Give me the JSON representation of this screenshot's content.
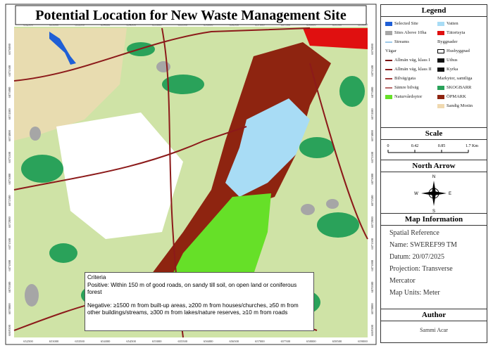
{
  "title": "Potential Location for New Waste Management Site",
  "map": {
    "x_labels": [
      "652500",
      "653000",
      "653500",
      "654000",
      "654500",
      "655000",
      "655500",
      "656000",
      "656500",
      "657000",
      "657500",
      "658000",
      "658500",
      "659000"
    ],
    "y_labels": [
      "6876000",
      "6875500",
      "6875000",
      "6874500",
      "6874000",
      "6873500",
      "6873000",
      "6872500",
      "6872000",
      "6871500",
      "6871000",
      "6870500",
      "6870000",
      "6869500"
    ]
  },
  "criteria": {
    "heading": "Criteria",
    "positive": "Positive: Within 150 m of good roads, on sandy till soil, on open land or coniferous forest",
    "negative": "Negative: ≥1500 m from built-up areas, ≥200 m from houses/churches, ≥50 m from other buildings/streams, ≥300 m from lakes/nature reserves, ≥10 m from roads"
  },
  "legend": {
    "heading": "Legend",
    "left": [
      {
        "label": "Selected Site",
        "kind": "fill",
        "color": "#1f5fd6"
      },
      {
        "label": "Sites Above 10ha",
        "kind": "fill",
        "color": "#a6a6a6"
      },
      {
        "label": "Streams",
        "kind": "line",
        "color": "#9ec9e8"
      },
      {
        "label": "Vägar",
        "kind": "heading"
      },
      {
        "label": "Allmän väg, klass I",
        "kind": "line",
        "color": "#7a0f0f"
      },
      {
        "label": "Allmän väg, klass II",
        "kind": "line",
        "color": "#8c1a1a"
      },
      {
        "label": "Bilväg/gata",
        "kind": "line",
        "color": "#a33a3a"
      },
      {
        "label": "Sämre bilväg",
        "kind": "line",
        "color": "#b86a6a"
      },
      {
        "label": "Naturvårdsytor",
        "kind": "fill",
        "color": "#66e028"
      }
    ],
    "right": [
      {
        "label": "Vatten",
        "kind": "fill",
        "color": "#a8dcf5"
      },
      {
        "label": "Tätortsyta",
        "kind": "fill",
        "color": "#e01010"
      },
      {
        "label": "Byggnader",
        "kind": "heading"
      },
      {
        "label": "Husbyggnad",
        "kind": "outline",
        "color": "#ffffff"
      },
      {
        "label": "Uthus",
        "kind": "fill",
        "color": "#111111"
      },
      {
        "label": "Kyrka",
        "kind": "fill",
        "color": "#111111"
      },
      {
        "label": "Markytor, samtliga",
        "kind": "heading"
      },
      {
        "label": "SKOGBARR",
        "kind": "fill",
        "color": "#2aa25a"
      },
      {
        "label": "ÖPMARK",
        "kind": "fill",
        "color": "#8e2410"
      },
      {
        "label": "Sandig Morän",
        "kind": "fill",
        "color": "#f0d9b0"
      }
    ]
  },
  "scale": {
    "heading": "Scale",
    "labels": [
      "0",
      "0.42",
      "0.85",
      "1.7 Km"
    ]
  },
  "north_arrow": {
    "heading": "North Arrow",
    "directions": [
      "N",
      "E",
      "S",
      "W"
    ]
  },
  "map_information": {
    "heading": "Map Information",
    "lines": [
      "Spatial Reference",
      "Name: SWEREF99 TM",
      "Datum: 20/07/2025",
      "Projection: Transverse",
      "Mercator",
      "Map Units: Meter"
    ]
  },
  "author": {
    "heading": "Author",
    "name": "Sammi Acar"
  }
}
